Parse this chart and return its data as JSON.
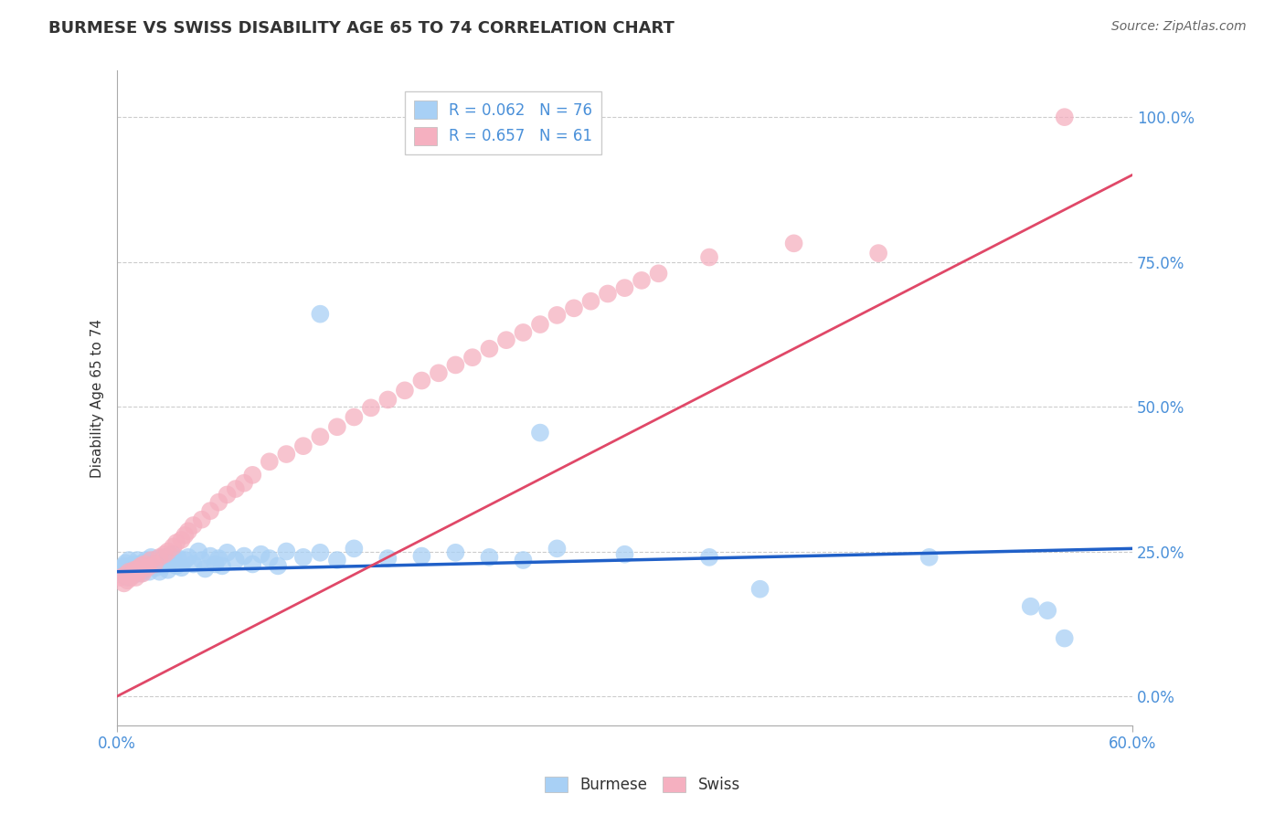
{
  "title": "BURMESE VS SWISS DISABILITY AGE 65 TO 74 CORRELATION CHART",
  "source": "Source: ZipAtlas.com",
  "ylabel": "Disability Age 65 to 74",
  "ytick_labels": [
    "0.0%",
    "25.0%",
    "50.0%",
    "75.0%",
    "100.0%"
  ],
  "ytick_values": [
    0.0,
    0.25,
    0.5,
    0.75,
    1.0
  ],
  "xlim": [
    0.0,
    0.6
  ],
  "ylim": [
    -0.05,
    1.08
  ],
  "burmese_R": 0.062,
  "burmese_N": 76,
  "swiss_R": 0.657,
  "swiss_N": 61,
  "burmese_color": "#a8d0f5",
  "swiss_color": "#f5b0c0",
  "burmese_line_color": "#2060c8",
  "swiss_line_color": "#e04868",
  "legend_label_burmese": "Burmese",
  "legend_label_swiss": "Swiss",
  "title_color": "#333333",
  "axis_label_color": "#4a90d9",
  "source_color": "#666666",
  "burmese_line_x": [
    0.0,
    0.6
  ],
  "burmese_line_y": [
    0.215,
    0.255
  ],
  "swiss_line_x": [
    0.0,
    0.6
  ],
  "swiss_line_y": [
    0.0,
    0.9
  ],
  "grid_color": "#cccccc",
  "background_color": "#ffffff",
  "burmese_scatter_x": [
    0.002,
    0.003,
    0.004,
    0.005,
    0.005,
    0.006,
    0.007,
    0.007,
    0.008,
    0.008,
    0.009,
    0.01,
    0.01,
    0.011,
    0.012,
    0.012,
    0.013,
    0.014,
    0.015,
    0.015,
    0.016,
    0.017,
    0.018,
    0.019,
    0.02,
    0.02,
    0.022,
    0.023,
    0.025,
    0.025,
    0.027,
    0.028,
    0.03,
    0.03,
    0.032,
    0.033,
    0.035,
    0.036,
    0.038,
    0.04,
    0.042,
    0.045,
    0.048,
    0.05,
    0.052,
    0.055,
    0.058,
    0.06,
    0.062,
    0.065,
    0.07,
    0.075,
    0.08,
    0.085,
    0.09,
    0.095,
    0.1,
    0.11,
    0.12,
    0.13,
    0.14,
    0.16,
    0.18,
    0.2,
    0.22,
    0.24,
    0.26,
    0.3,
    0.35,
    0.38,
    0.12,
    0.25,
    0.48,
    0.54,
    0.55,
    0.56
  ],
  "burmese_scatter_y": [
    0.22,
    0.21,
    0.225,
    0.215,
    0.23,
    0.205,
    0.22,
    0.235,
    0.215,
    0.225,
    0.218,
    0.222,
    0.21,
    0.228,
    0.215,
    0.235,
    0.22,
    0.212,
    0.23,
    0.225,
    0.218,
    0.235,
    0.222,
    0.215,
    0.24,
    0.228,
    0.235,
    0.222,
    0.238,
    0.215,
    0.225,
    0.24,
    0.23,
    0.218,
    0.235,
    0.245,
    0.225,
    0.238,
    0.222,
    0.235,
    0.24,
    0.228,
    0.25,
    0.235,
    0.22,
    0.242,
    0.228,
    0.238,
    0.225,
    0.248,
    0.235,
    0.242,
    0.228,
    0.245,
    0.238,
    0.225,
    0.25,
    0.24,
    0.248,
    0.235,
    0.255,
    0.238,
    0.242,
    0.248,
    0.24,
    0.235,
    0.255,
    0.245,
    0.24,
    0.185,
    0.66,
    0.455,
    0.24,
    0.155,
    0.148,
    0.1
  ],
  "swiss_scatter_x": [
    0.002,
    0.004,
    0.005,
    0.006,
    0.007,
    0.008,
    0.009,
    0.01,
    0.011,
    0.012,
    0.013,
    0.014,
    0.015,
    0.016,
    0.018,
    0.02,
    0.022,
    0.025,
    0.028,
    0.03,
    0.033,
    0.035,
    0.038,
    0.04,
    0.042,
    0.045,
    0.05,
    0.055,
    0.06,
    0.065,
    0.07,
    0.075,
    0.08,
    0.09,
    0.1,
    0.11,
    0.12,
    0.13,
    0.14,
    0.15,
    0.16,
    0.17,
    0.18,
    0.19,
    0.2,
    0.21,
    0.22,
    0.23,
    0.24,
    0.25,
    0.26,
    0.27,
    0.28,
    0.29,
    0.3,
    0.31,
    0.32,
    0.35,
    0.4,
    0.45,
    0.56
  ],
  "swiss_scatter_y": [
    0.205,
    0.195,
    0.21,
    0.2,
    0.215,
    0.205,
    0.21,
    0.218,
    0.205,
    0.22,
    0.215,
    0.225,
    0.212,
    0.228,
    0.222,
    0.235,
    0.228,
    0.24,
    0.245,
    0.25,
    0.258,
    0.265,
    0.27,
    0.278,
    0.285,
    0.295,
    0.305,
    0.32,
    0.335,
    0.348,
    0.358,
    0.368,
    0.382,
    0.405,
    0.418,
    0.432,
    0.448,
    0.465,
    0.482,
    0.498,
    0.512,
    0.528,
    0.545,
    0.558,
    0.572,
    0.585,
    0.6,
    0.615,
    0.628,
    0.642,
    0.658,
    0.67,
    0.682,
    0.695,
    0.705,
    0.718,
    0.73,
    0.758,
    0.782,
    0.765,
    1.0
  ]
}
